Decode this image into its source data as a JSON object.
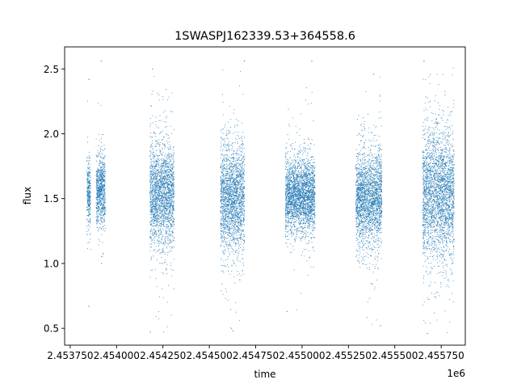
{
  "chart_data": {
    "type": "scatter",
    "title": "1SWASPJ162339.53+364558.6",
    "xlabel": "time",
    "ylabel": "flux",
    "x_offset_label": "1e6",
    "xlim": [
      2.45372,
      2.45588
    ],
    "ylim": [
      0.37,
      2.67
    ],
    "x_ticks": [
      2.45375,
      2.454,
      2.45425,
      2.4545,
      2.45475,
      2.455,
      2.45525,
      2.4555,
      2.45575
    ],
    "x_tick_labels": [
      "2.453750",
      "2.454000",
      "2.454250",
      "2.454500",
      "2.454750",
      "2.455000",
      "2.455250",
      "2.455500",
      "2.455750"
    ],
    "y_ticks": [
      0.5,
      1.0,
      1.5,
      2.0,
      2.5
    ],
    "y_tick_labels": [
      "0.5",
      "1.0",
      "1.5",
      "2.0",
      "2.5"
    ],
    "marker_color": "#1f77b4",
    "grid": false,
    "series": [
      {
        "segments": [
          {
            "x_start": 2.45384,
            "x_end": 2.45386,
            "center": 1.55,
            "spread": 0.11,
            "y_min": 0.67,
            "y_max": 2.42
          },
          {
            "x_start": 2.45389,
            "x_end": 2.45394,
            "center": 1.56,
            "spread": 0.14,
            "y_min": 1.0,
            "y_max": 2.56
          },
          {
            "x_start": 2.45418,
            "x_end": 2.45431,
            "center": 1.52,
            "spread": 0.2,
            "y_min": 0.47,
            "y_max": 2.5
          },
          {
            "x_start": 2.45456,
            "x_end": 2.45469,
            "center": 1.5,
            "spread": 0.21,
            "y_min": 0.48,
            "y_max": 2.56
          },
          {
            "x_start": 2.45491,
            "x_end": 2.45507,
            "center": 1.53,
            "spread": 0.14,
            "y_min": 0.63,
            "y_max": 2.56
          },
          {
            "x_start": 2.45529,
            "x_end": 2.45543,
            "center": 1.5,
            "spread": 0.18,
            "y_min": 0.52,
            "y_max": 2.46
          },
          {
            "x_start": 2.45565,
            "x_end": 2.45582,
            "center": 1.53,
            "spread": 0.26,
            "y_min": 0.46,
            "y_max": 2.56
          }
        ]
      }
    ]
  }
}
